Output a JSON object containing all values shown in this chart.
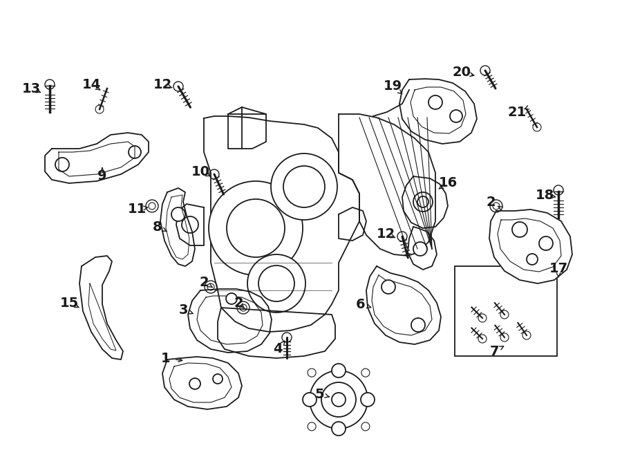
{
  "bg_color": "#ffffff",
  "line_color": "#1a1a1a",
  "fig_width": 9.0,
  "fig_height": 6.61,
  "dpi": 100
}
